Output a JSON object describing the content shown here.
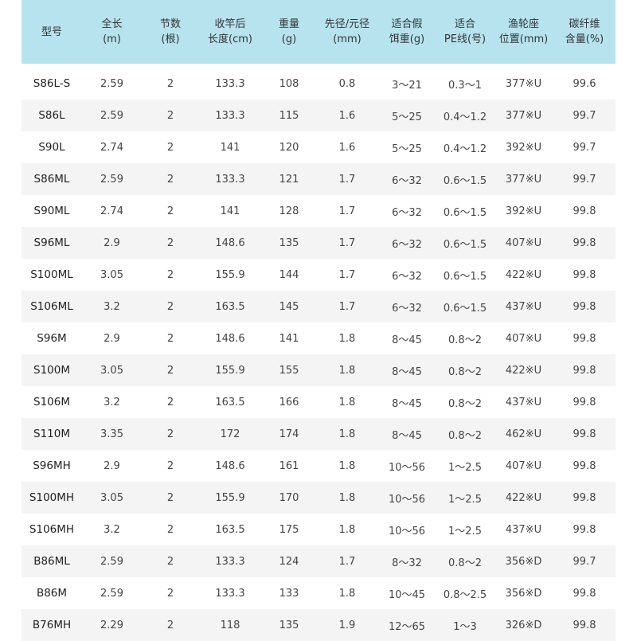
{
  "table": {
    "headers": [
      [
        "型号"
      ],
      [
        "全长",
        "(m)"
      ],
      [
        "节数",
        "(根)"
      ],
      [
        "收竿后",
        "长度(cm)"
      ],
      [
        "重量",
        "(g)"
      ],
      [
        "先径/元径",
        "(mm)"
      ],
      [
        "适合假",
        "饵重(g)"
      ],
      [
        "适合",
        "PE线(号)"
      ],
      [
        "渔轮座",
        "位置(mm)"
      ],
      [
        "碳纤维",
        "含量(%)"
      ]
    ],
    "rows": [
      [
        "S86L-S",
        "2.59",
        "2",
        "133.3",
        "108",
        "0.8",
        "3～21",
        "0.3～1",
        "377※U",
        "99.6"
      ],
      [
        "S86L",
        "2.59",
        "2",
        "133.3",
        "115",
        "1.6",
        "5～25",
        "0.4～1.2",
        "377※U",
        "99.7"
      ],
      [
        "S90L",
        "2.74",
        "2",
        "141",
        "120",
        "1.6",
        "5～25",
        "0.4～1.2",
        "392※U",
        "99.7"
      ],
      [
        "S86ML",
        "2.59",
        "2",
        "133.3",
        "121",
        "1.7",
        "6～32",
        "0.6～1.5",
        "377※U",
        "99.7"
      ],
      [
        "S90ML",
        "2.74",
        "2",
        "141",
        "128",
        "1.7",
        "6～32",
        "0.6～1.5",
        "392※U",
        "99.8"
      ],
      [
        "S96ML",
        "2.9",
        "2",
        "148.6",
        "135",
        "1.7",
        "6～32",
        "0.6～1.5",
        "407※U",
        "99.8"
      ],
      [
        "S100ML",
        "3.05",
        "2",
        "155.9",
        "144",
        "1.7",
        "6～32",
        "0.6～1.5",
        "422※U",
        "99.8"
      ],
      [
        "S106ML",
        "3.2",
        "2",
        "163.5",
        "145",
        "1.7",
        "6～32",
        "0.6～1.5",
        "437※U",
        "99.8"
      ],
      [
        "S96M",
        "2.9",
        "2",
        "148.6",
        "141",
        "1.8",
        "8～45",
        "0.8～2",
        "407※U",
        "99.8"
      ],
      [
        "S100M",
        "3.05",
        "2",
        "155.9",
        "155",
        "1.8",
        "8～45",
        "0.8～2",
        "422※U",
        "99.8"
      ],
      [
        "S106M",
        "3.2",
        "2",
        "163.5",
        "166",
        "1.8",
        "8～45",
        "0.8～2",
        "437※U",
        "99.8"
      ],
      [
        "S110M",
        "3.35",
        "2",
        "172",
        "174",
        "1.8",
        "8～45",
        "0.8～2",
        "462※U",
        "99.8"
      ],
      [
        "S96MH",
        "2.9",
        "2",
        "148.6",
        "161",
        "1.8",
        "10～56",
        "1～2.5",
        "407※U",
        "99.8"
      ],
      [
        "S100MH",
        "3.05",
        "2",
        "155.9",
        "170",
        "1.8",
        "10～56",
        "1～2.5",
        "422※U",
        "99.8"
      ],
      [
        "S106MH",
        "3.2",
        "2",
        "163.5",
        "175",
        "1.8",
        "10～56",
        "1～2.5",
        "437※U",
        "99.8"
      ],
      [
        "B86ML",
        "2.59",
        "2",
        "133.3",
        "124",
        "1.7",
        "8～32",
        "0.8～2",
        "356※D",
        "99.7"
      ],
      [
        "B86M",
        "2.59",
        "2",
        "133.3",
        "133",
        "1.8",
        "10～45",
        "0.8～2.5",
        "356※D",
        "99.8"
      ],
      [
        "B76MH",
        "2.29",
        "2",
        "118",
        "135",
        "1.9",
        "12～65",
        "1～3",
        "326※D",
        "99.8"
      ]
    ]
  }
}
